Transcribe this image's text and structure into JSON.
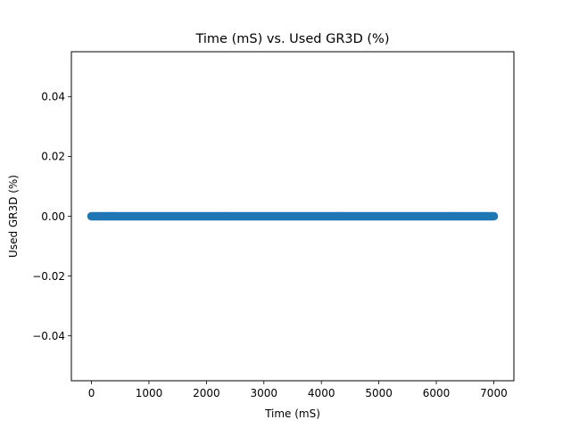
{
  "chart_data": {
    "type": "scatter",
    "title": "Time (mS) vs. Used GR3D (%)",
    "xlabel": "Time (mS)",
    "ylabel": "Used GR3D (%)",
    "xlim": [
      -350,
      7350
    ],
    "ylim": [
      -0.055,
      0.055
    ],
    "xticks": [
      0,
      1000,
      2000,
      3000,
      4000,
      5000,
      6000,
      7000
    ],
    "xtick_labels": [
      "0",
      "1000",
      "2000",
      "3000",
      "4000",
      "5000",
      "6000",
      "7000"
    ],
    "yticks": [
      -0.04,
      -0.02,
      0.0,
      0.02,
      0.04
    ],
    "ytick_labels": [
      "−0.04",
      "−0.02",
      "0.00",
      "0.02",
      "0.04"
    ],
    "series": [
      {
        "color": "#1f77b4",
        "x_start": 0,
        "x_end": 7000,
        "x_step": 20,
        "y": 0.0
      }
    ],
    "grid": false,
    "legend": "none"
  }
}
